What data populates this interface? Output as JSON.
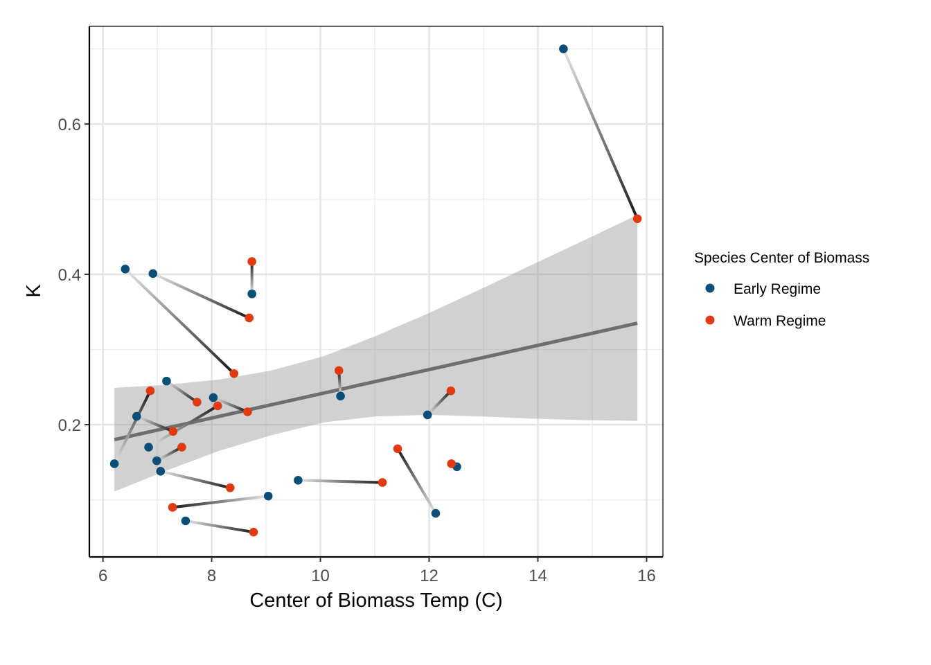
{
  "chart_data": {
    "type": "scatter",
    "xlabel": "Center of Biomass Temp (C)",
    "ylabel": "K",
    "xlim": [
      5.75,
      16.3
    ],
    "ylim": [
      0.024,
      0.73
    ],
    "x_ticks": [
      6,
      8,
      10,
      12,
      14,
      16
    ],
    "x_tick_labels": [
      "6",
      "8",
      "10",
      "12",
      "14",
      "16"
    ],
    "y_ticks": [
      0.2,
      0.4,
      0.6
    ],
    "y_tick_labels": [
      "0.2",
      "0.4",
      "0.6"
    ],
    "grid": true,
    "legend": {
      "title": "Species Center of Biomass",
      "position": "right",
      "entries": [
        {
          "label": "Early Regime",
          "color": "#0b4f78"
        },
        {
          "label": "Warm Regime",
          "color": "#e03a13"
        }
      ]
    },
    "segment_gradient": {
      "from": "#e6e6e6",
      "to": "#1a1a1a"
    },
    "pairs": [
      {
        "early": [
          14.47,
          0.7
        ],
        "warm": [
          15.83,
          0.474
        ]
      },
      {
        "early": [
          8.74,
          0.374
        ],
        "warm": [
          8.74,
          0.417
        ]
      },
      {
        "early": [
          6.92,
          0.401
        ],
        "warm": [
          8.69,
          0.342
        ]
      },
      {
        "early": [
          6.41,
          0.407
        ],
        "warm": [
          8.41,
          0.268
        ]
      },
      {
        "early": [
          10.37,
          0.238
        ],
        "warm": [
          10.34,
          0.272
        ]
      },
      {
        "early": [
          11.97,
          0.213
        ],
        "warm": [
          12.4,
          0.245
        ]
      },
      {
        "early": [
          7.17,
          0.258
        ],
        "warm": [
          7.73,
          0.23
        ]
      },
      {
        "early": [
          8.03,
          0.236
        ],
        "warm": [
          8.66,
          0.217
        ]
      },
      {
        "early": [
          6.62,
          0.211
        ],
        "warm": [
          7.29,
          0.191
        ]
      },
      {
        "early": [
          6.21,
          0.148
        ],
        "warm": [
          6.87,
          0.245
        ]
      },
      {
        "early": [
          6.84,
          0.17
        ],
        "warm": [
          8.11,
          0.225
        ]
      },
      {
        "early": [
          6.99,
          0.152
        ],
        "warm": [
          7.45,
          0.17
        ]
      },
      {
        "early": [
          7.06,
          0.138
        ],
        "warm": [
          8.34,
          0.116
        ]
      },
      {
        "early": [
          9.59,
          0.126
        ],
        "warm": [
          11.14,
          0.123
        ]
      },
      {
        "early": [
          9.04,
          0.105
        ],
        "warm": [
          7.28,
          0.09
        ]
      },
      {
        "early": [
          7.52,
          0.072
        ],
        "warm": [
          8.77,
          0.057
        ]
      },
      {
        "early": [
          12.12,
          0.082
        ],
        "warm": [
          11.42,
          0.168
        ]
      },
      {
        "early": [
          12.51,
          0.144
        ],
        "warm": [
          12.41,
          0.148
        ]
      }
    ],
    "trend_line": {
      "x0": 6.21,
      "y0": 0.18,
      "x1": 15.83,
      "y1": 0.335
    },
    "confidence_band": {
      "x": [
        6.21,
        7.17,
        8.13,
        9.1,
        10.06,
        11.02,
        11.98,
        12.94,
        13.9,
        14.87,
        15.83
      ],
      "upper": [
        0.249,
        0.253,
        0.26,
        0.272,
        0.291,
        0.318,
        0.348,
        0.38,
        0.413,
        0.446,
        0.479
      ],
      "lower": [
        0.111,
        0.139,
        0.165,
        0.186,
        0.203,
        0.211,
        0.213,
        0.211,
        0.208,
        0.206,
        0.205
      ]
    }
  }
}
